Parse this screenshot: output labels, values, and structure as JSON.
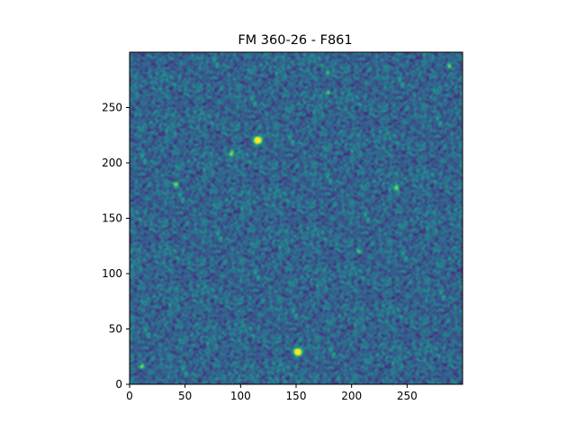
{
  "chart_data": {
    "type": "heatmap",
    "title": "FM 360-26 - F861",
    "xlabel": "",
    "ylabel": "",
    "image_shape": [
      300,
      300
    ],
    "origin": "lower",
    "colormap": "viridis",
    "xlim": [
      0,
      300
    ],
    "ylim": [
      0,
      300
    ],
    "xticks": [
      0,
      50,
      100,
      150,
      200,
      250
    ],
    "yticks": [
      0,
      50,
      100,
      150,
      200,
      250
    ],
    "xtick_labels": [
      "0",
      "50",
      "100",
      "150",
      "200",
      "250"
    ],
    "ytick_labels": [
      "0",
      "50",
      "100",
      "150",
      "200",
      "250"
    ],
    "grid": false,
    "legend": "none",
    "background_level": 0.33,
    "noise_level": 0.12,
    "sources": [
      {
        "x": 115,
        "y": 220,
        "peak": 1.0
      },
      {
        "x": 151,
        "y": 29,
        "peak": 1.0
      },
      {
        "x": 91,
        "y": 208,
        "peak": 0.55
      },
      {
        "x": 41,
        "y": 180,
        "peak": 0.55
      },
      {
        "x": 240,
        "y": 177,
        "peak": 0.5
      },
      {
        "x": 178,
        "y": 263,
        "peak": 0.5
      },
      {
        "x": 178,
        "y": 280,
        "peak": 0.45
      },
      {
        "x": 288,
        "y": 287,
        "peak": 0.45
      },
      {
        "x": 11,
        "y": 16,
        "peak": 0.5
      },
      {
        "x": 206,
        "y": 120,
        "peak": 0.35
      }
    ],
    "colors": {
      "low": "#440154",
      "mid": "#21918c",
      "high": "#fde725"
    }
  }
}
